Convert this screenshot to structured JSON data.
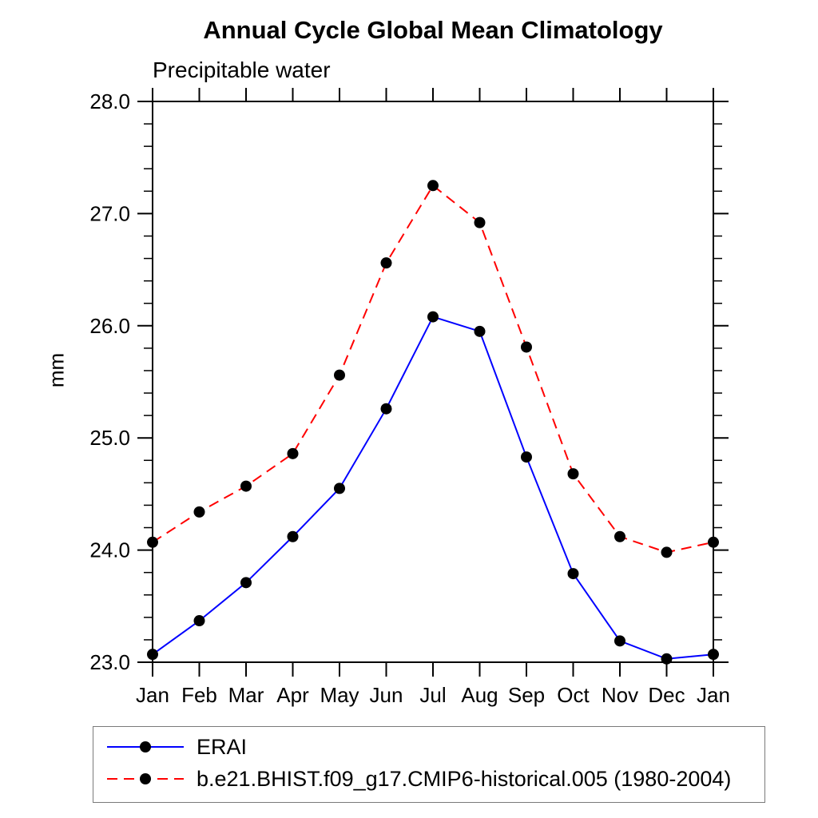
{
  "title": "Annual Cycle Global Mean Climatology",
  "subtitle": "Precipitable water",
  "ylabel": "mm",
  "colors": {
    "axis": "#000000",
    "text": "#000000",
    "erai_line": "#0000ff",
    "model_line": "#ff0000",
    "marker": "#000000",
    "legend_border": "#7a7a7a"
  },
  "chart_data": {
    "type": "line",
    "title": "Annual Cycle Global Mean Climatology",
    "subtitle": "Precipitable water",
    "ylabel": "mm",
    "x_categories": [
      "Jan",
      "Feb",
      "Mar",
      "Apr",
      "May",
      "Jun",
      "Jul",
      "Aug",
      "Sep",
      "Oct",
      "Nov",
      "Dec",
      "Jan"
    ],
    "ylim": [
      23.0,
      28.0
    ],
    "ytick_labels": [
      "23.0",
      "24.0",
      "25.0",
      "26.0",
      "27.0",
      "28.0"
    ],
    "ytick_values": [
      23.0,
      24.0,
      25.0,
      26.0,
      27.0,
      28.0
    ],
    "ytick_minor_step": 0.2,
    "grid": false,
    "legend_position": "bottom",
    "series": [
      {
        "name": "ERAI",
        "color": "#0000ff",
        "line_style": "solid",
        "marker": "filled-circle",
        "marker_color": "#000000",
        "values": [
          23.07,
          23.37,
          23.71,
          24.12,
          24.55,
          25.26,
          26.08,
          25.95,
          24.83,
          23.79,
          23.19,
          23.03,
          23.07
        ]
      },
      {
        "name": "b.e21.BHIST.f09_g17.CMIP6-historical.005 (1980-2004)",
        "color": "#ff0000",
        "line_style": "dashed",
        "marker": "filled-circle",
        "marker_color": "#000000",
        "values": [
          24.07,
          24.34,
          24.57,
          24.86,
          25.56,
          26.56,
          27.25,
          26.92,
          25.81,
          24.68,
          24.12,
          23.98,
          24.07
        ]
      }
    ]
  }
}
